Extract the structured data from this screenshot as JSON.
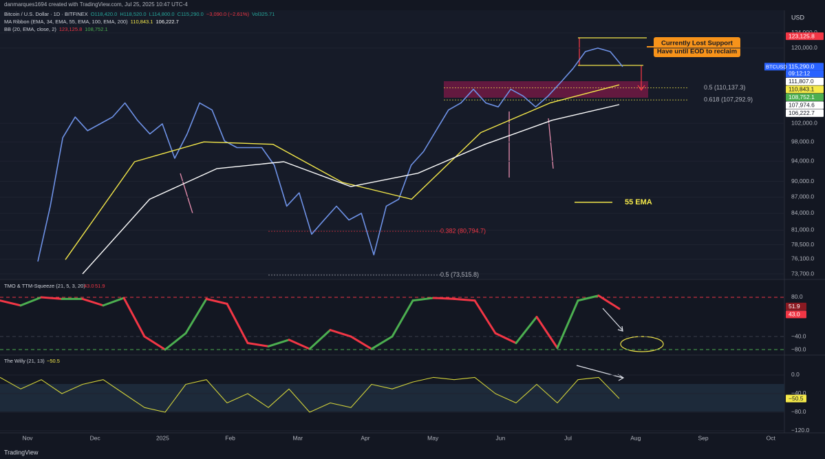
{
  "header": {
    "credit": "danmarques1694 created with TradingView.com, Jul 25, 2025 10:47 UTC-4",
    "legend": [
      [
        "Bitcoin / U.S. Dollar · 1D · BITFINEX",
        "O118,420.0",
        "H118,520.0",
        "L114,800.0",
        "C115,290.0",
        "−3,090.0 (−2.61%)",
        "Vol325.71"
      ],
      [
        "MA Ribbon (EMA, 34, EMA, 55, EMA, 100, EMA, 200)",
        "110,843.1",
        "106,222.7"
      ],
      [
        "BB (20, EMA, close, 2)",
        "123,125.8",
        "108,752.1"
      ]
    ]
  },
  "currency": "USD",
  "price_pane": {
    "type": "line",
    "log_scale": true,
    "ylim": [
      72940,
      130200
    ],
    "yticks": [
      {
        "value": 124000,
        "label": "124,000.0"
      },
      {
        "value": 120000,
        "label": "120,000.0"
      },
      {
        "value": 102000,
        "label": "102,000.0"
      },
      {
        "value": 98000,
        "label": "98,000.0"
      },
      {
        "value": 94000,
        "label": "94,000.0"
      },
      {
        "value": 90000,
        "label": "90,000.0"
      },
      {
        "value": 87000,
        "label": "87,000.0"
      },
      {
        "value": 84000,
        "label": "84,000.0"
      },
      {
        "value": 81000,
        "label": "81,000.0"
      },
      {
        "value": 78500,
        "label": "78,500.0"
      },
      {
        "value": 76100,
        "label": "76,100.0"
      },
      {
        "value": 73700,
        "label": "73,700.0"
      }
    ],
    "series": [
      {
        "color": "#6f93e8",
        "values": [
          75700,
          85300,
          98900,
          103400,
          100400,
          101900,
          103400,
          106600,
          102700,
          99700,
          101900,
          94600,
          99700,
          106600,
          105000,
          98200,
          96800,
          96800,
          96800,
          93200,
          85300,
          87800,
          80300,
          82800,
          85300,
          82800,
          84000,
          76800,
          85300,
          86600,
          93200,
          96000,
          100400,
          105000,
          106600,
          109800,
          106600,
          105700,
          109800,
          108200,
          105700,
          108200,
          111400,
          114800,
          119100,
          120000,
          119100,
          115290
        ]
      },
      {
        "name": "55 EMA",
        "color": "#f5e94a",
        "values": [
          76000,
          93900,
          98000,
          97500,
          89800,
          86600,
          100000,
          106600,
          110843.1
        ]
      },
      {
        "color": "#ffffff",
        "values": [
          73700,
          86600,
          92500,
          93900,
          89000,
          91600,
          97500,
          102700,
          106222.7
        ]
      }
    ],
    "price_tags": [
      {
        "value": 123125.8,
        "label": "123,125.8",
        "color": "#f23645"
      },
      {
        "value": 115290,
        "label": "115,290.0",
        "color": "#2962ff",
        "symbol": "BTCUSD",
        "countdown": "09:12:12"
      },
      {
        "value": 111807,
        "label": "111,807.0",
        "color": "#ffffff"
      },
      {
        "value": 110843.1,
        "label": "110,843.1",
        "color": "#f5e94a"
      },
      {
        "value": 108752.1,
        "label": "108,752.1",
        "color": "#4caf50"
      },
      {
        "value": 107974.6,
        "label": "107,974.6",
        "color": "#ffffff"
      },
      {
        "value": 106222.7,
        "label": "106,222.7",
        "color": "#ffffff"
      }
    ],
    "fib_levels": [
      {
        "value": 110137.3,
        "label": "0.5 (110,137.3)",
        "color": "#b2b5be"
      },
      {
        "value": 107292.9,
        "label": "0.618 (107,292.9)",
        "color": "#b2b5be"
      },
      {
        "value": 80794.7,
        "label": "0.382 (80,794.7)",
        "color": "#f23645"
      },
      {
        "value": 73515.8,
        "label": "0.5 (73,515.8)",
        "color": "#b2b5be"
      }
    ],
    "annotation": [
      "Currently Lost Support",
      "Have until EOD to reclaim"
    ]
  },
  "tmo_pane": {
    "title": "TMO & TTM-Squeeze (21, 5, 3, 20)",
    "title_values": [
      "43.0",
      "51.9"
    ],
    "ylim": [
      -94.7,
      130.5
    ],
    "yticks": [
      {
        "value": 80,
        "label": "80.0"
      },
      {
        "value": -40,
        "label": "−40.0"
      },
      {
        "value": -80,
        "label": "−80.0"
      }
    ],
    "grid_colors": [
      "#f23645",
      "#3a3e4a",
      "#4caf50"
    ],
    "rising_color": "#4caf50",
    "falling_color": "#f23645",
    "series": [
      {
        "values": [
          70,
          55,
          80,
          75,
          75,
          55,
          78,
          -40,
          -80,
          -30,
          75,
          60,
          -60,
          -70,
          -50,
          -78,
          -20,
          -40,
          -78,
          -40,
          70,
          78,
          75,
          70,
          -30,
          -60,
          20,
          -75,
          70,
          85,
          45
        ]
      }
    ],
    "value_tags": [
      {
        "value": 51.9,
        "label": "51.9",
        "color": "#8b1a22"
      },
      {
        "value": 43,
        "label": "43.0",
        "color": "#f23645"
      }
    ]
  },
  "willy_pane": {
    "title": "The Willy (21, 13)",
    "title_value": "−50.5",
    "ylim": [
      -123,
      40
    ],
    "yticks": [
      {
        "value": 0,
        "label": "0.0"
      },
      {
        "value": -40,
        "label": "−40.0"
      },
      {
        "value": -80,
        "label": "−80.0"
      },
      {
        "value": -120,
        "label": "−120.0"
      }
    ],
    "series": [
      {
        "color": "#d4d43a",
        "values": [
          -5,
          -30,
          -10,
          -40,
          -20,
          -10,
          -40,
          -70,
          -80,
          -20,
          -10,
          -60,
          -40,
          -70,
          -30,
          -80,
          -60,
          -70,
          -20,
          -30,
          -15,
          -5,
          -10,
          -5,
          -40,
          -60,
          -20,
          -60,
          -10,
          -5,
          -50.5
        ]
      }
    ],
    "value_tags": [
      {
        "value": -50.5,
        "label": "−50.5",
        "color": "#f5e94a"
      }
    ]
  },
  "time_axis": [
    "Nov",
    "Dec",
    "2025",
    "Feb",
    "Mar",
    "Apr",
    "May",
    "Jun",
    "Jul",
    "Aug",
    "Sep",
    "Oct"
  ],
  "footer": "TradingView"
}
